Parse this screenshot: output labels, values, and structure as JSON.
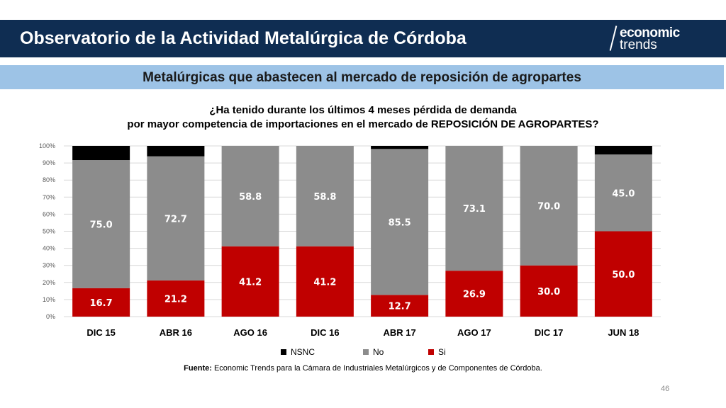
{
  "header": {
    "title": "Observatorio de la Actividad Metalúrgica de Córdoba",
    "logo_line1": "economic",
    "logo_line2": "trends"
  },
  "subtitle": "Metalúrgicas que abastecen al mercado de reposición de agropartes",
  "question": {
    "line1": "¿Ha tenido durante los últimos 4 meses pérdida de demanda",
    "line2": "por mayor competencia de importaciones en el mercado de REPOSICIÓN DE AGROPARTES?"
  },
  "chart_data": {
    "type": "bar",
    "stacked": true,
    "categories": [
      "DIC 15",
      "ABR 16",
      "AGO 16",
      "DIC 16",
      "ABR 17",
      "AGO 17",
      "DIC 17",
      "JUN 18"
    ],
    "series": [
      {
        "name": "Si",
        "color": "#c00000",
        "values": [
          16.7,
          21.2,
          41.2,
          41.2,
          12.7,
          26.9,
          30.0,
          50.0
        ],
        "labels": [
          "16.7",
          "21.2",
          "41.2",
          "41.2",
          "12.7",
          "26.9",
          "30.0",
          "50.0"
        ]
      },
      {
        "name": "No",
        "color": "#8c8c8c",
        "values": [
          75.0,
          72.7,
          58.8,
          58.8,
          85.5,
          73.1,
          70.0,
          45.0
        ],
        "labels": [
          "75.0",
          "72.7",
          "58.8",
          "58.8",
          "85.5",
          "73.1",
          "70.0",
          "45.0"
        ]
      },
      {
        "name": "NSNC",
        "color": "#000000",
        "values": [
          8.3,
          6.1,
          0,
          0,
          1.8,
          0,
          0,
          5.0
        ],
        "labels": []
      }
    ],
    "yticks": [
      "0%",
      "10%",
      "20%",
      "30%",
      "40%",
      "50%",
      "60%",
      "70%",
      "80%",
      "90%",
      "100%"
    ],
    "ylim": [
      0,
      100
    ],
    "grid": true,
    "legend_order": [
      "NSNC",
      "No",
      "Si"
    ],
    "legend_position": "bottom"
  },
  "source": {
    "label": "Fuente:",
    "text": " Economic Trends para la Cámara de Industriales Metalúrgicos y de Componentes de Córdoba."
  },
  "page_number": "46"
}
